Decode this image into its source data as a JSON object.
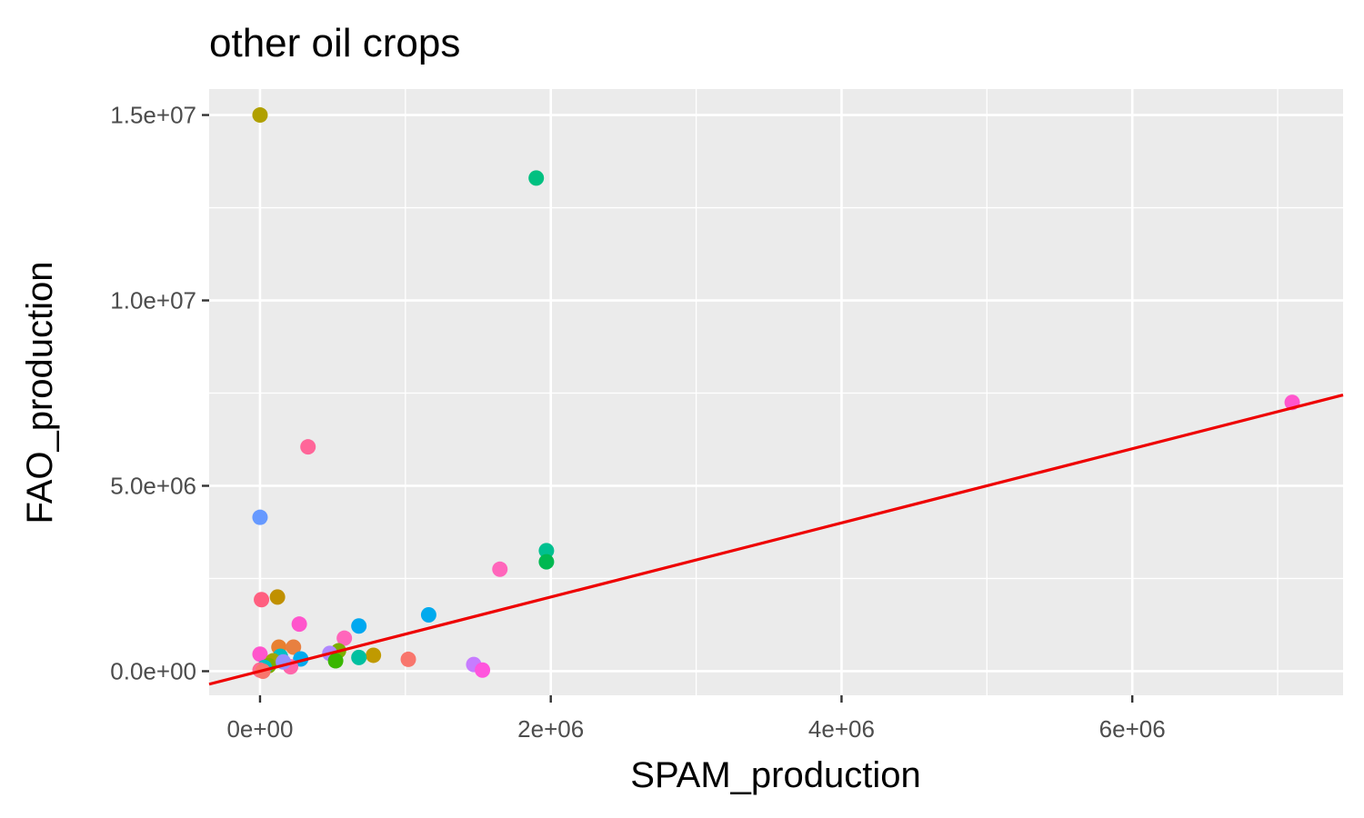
{
  "chart_data": {
    "type": "scatter",
    "title": "other oil crops",
    "xlabel": "SPAM_production",
    "ylabel": "FAO_production",
    "xlim": [
      -350000,
      7450000
    ],
    "ylim": [
      -650000,
      15700000
    ],
    "x_ticks": [
      0,
      2000000,
      4000000,
      6000000
    ],
    "x_tick_labels": [
      "0e+00",
      "2e+06",
      "4e+06",
      "6e+06"
    ],
    "y_ticks": [
      0,
      5000000,
      10000000,
      15000000
    ],
    "y_tick_labels": [
      "0.0e+00",
      "5.0e+06",
      "1.0e+07",
      "1.5e+07"
    ],
    "grid": true,
    "legend": "none",
    "panel_background": "#ebebeb",
    "reference_line": {
      "slope": 1,
      "intercept": 0,
      "color": "#ee0000"
    },
    "points": [
      {
        "x": 0,
        "y": 15000000,
        "color": "#b0a000"
      },
      {
        "x": 1900000,
        "y": 13300000,
        "color": "#00c080"
      },
      {
        "x": 7100000,
        "y": 7250000,
        "color": "#ff55cc"
      },
      {
        "x": 330000,
        "y": 6050000,
        "color": "#ff6699"
      },
      {
        "x": 0,
        "y": 4150000,
        "color": "#6699ff"
      },
      {
        "x": 1970000,
        "y": 3250000,
        "color": "#00c090"
      },
      {
        "x": 1970000,
        "y": 2950000,
        "color": "#00b850"
      },
      {
        "x": 1650000,
        "y": 2750000,
        "color": "#ff66bb"
      },
      {
        "x": 120000,
        "y": 2000000,
        "color": "#c09000"
      },
      {
        "x": 10000,
        "y": 1930000,
        "color": "#ff5f80"
      },
      {
        "x": 1160000,
        "y": 1520000,
        "color": "#00aaee"
      },
      {
        "x": 270000,
        "y": 1270000,
        "color": "#ff55cc"
      },
      {
        "x": 680000,
        "y": 1220000,
        "color": "#00a8f0"
      },
      {
        "x": 580000,
        "y": 890000,
        "color": "#ff66bb"
      },
      {
        "x": 130000,
        "y": 650000,
        "color": "#e88030"
      },
      {
        "x": 230000,
        "y": 650000,
        "color": "#e88040"
      },
      {
        "x": 540000,
        "y": 550000,
        "color": "#7cae00"
      },
      {
        "x": 480000,
        "y": 480000,
        "color": "#b088ff"
      },
      {
        "x": 0,
        "y": 460000,
        "color": "#ff55cc"
      },
      {
        "x": 780000,
        "y": 430000,
        "color": "#c09a00"
      },
      {
        "x": 140000,
        "y": 400000,
        "color": "#00bfc4"
      },
      {
        "x": 280000,
        "y": 330000,
        "color": "#00aaee"
      },
      {
        "x": 680000,
        "y": 370000,
        "color": "#00c0a0"
      },
      {
        "x": 1020000,
        "y": 320000,
        "color": "#f8766d"
      },
      {
        "x": 520000,
        "y": 280000,
        "color": "#39b600"
      },
      {
        "x": 90000,
        "y": 280000,
        "color": "#a3a500"
      },
      {
        "x": 1470000,
        "y": 180000,
        "color": "#c77cff"
      },
      {
        "x": 60000,
        "y": 150000,
        "color": "#7cae00"
      },
      {
        "x": 210000,
        "y": 120000,
        "color": "#ff66aa"
      },
      {
        "x": 30000,
        "y": 100000,
        "color": "#00bfc4"
      },
      {
        "x": 1530000,
        "y": 30000,
        "color": "#ff55dd"
      },
      {
        "x": 0,
        "y": 30000,
        "color": "#ff6c91"
      },
      {
        "x": 20000,
        "y": 0,
        "color": "#f8766d"
      },
      {
        "x": 160000,
        "y": 250000,
        "color": "#9590ff"
      }
    ]
  }
}
